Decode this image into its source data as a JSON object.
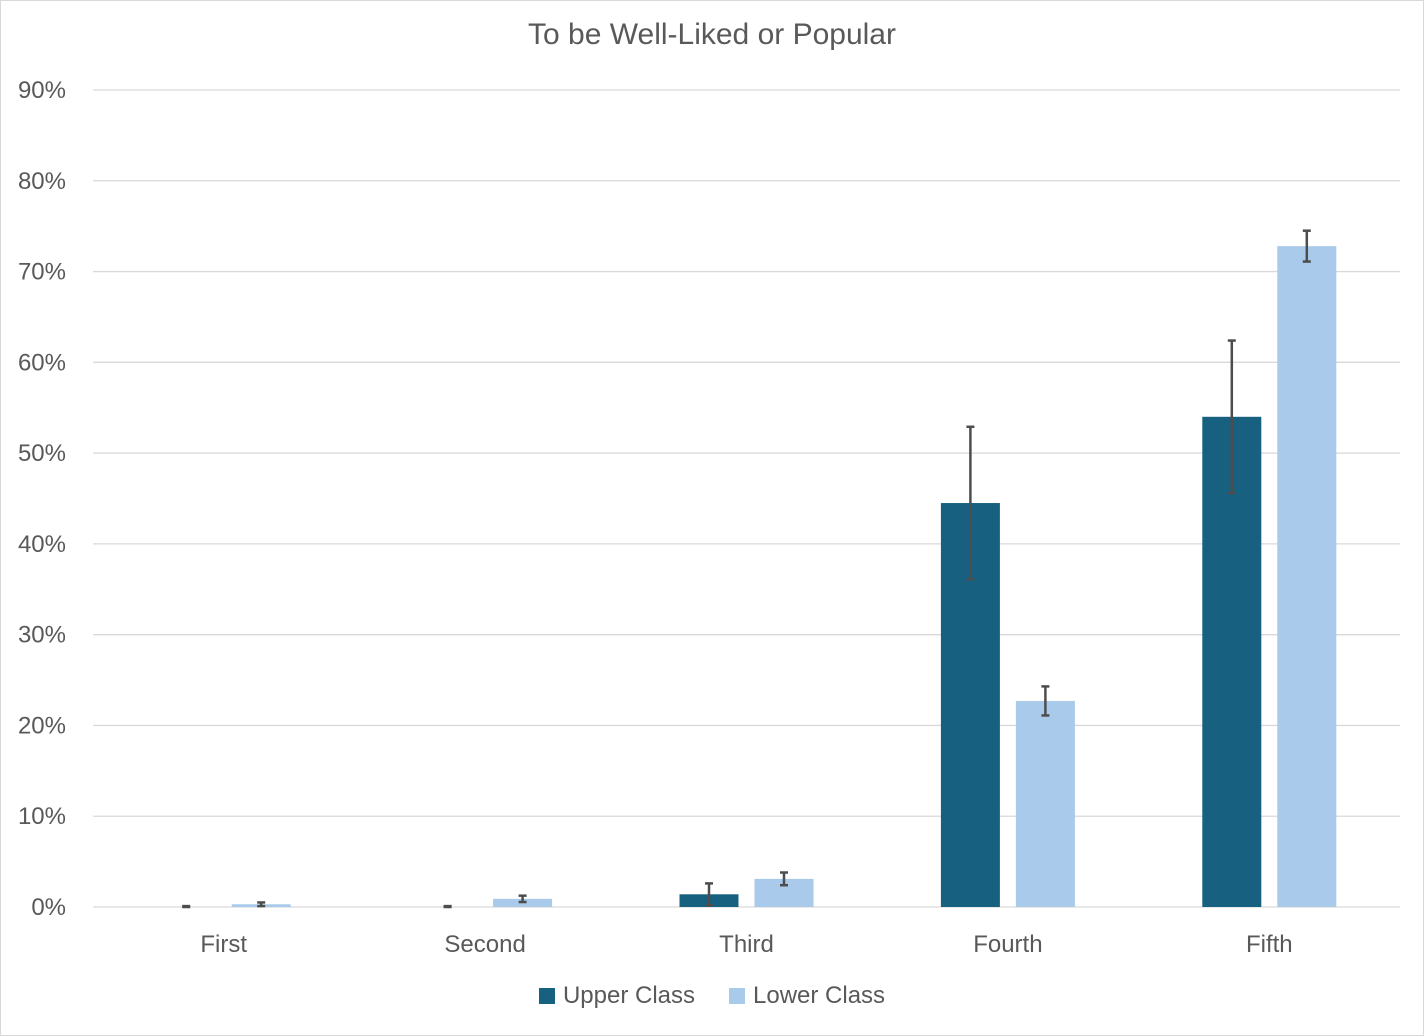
{
  "chart_data": {
    "type": "bar",
    "title": "To be Well-Liked or Popular",
    "xlabel": "",
    "ylabel": "",
    "categories": [
      "First",
      "Second",
      "Third",
      "Fourth",
      "Fifth"
    ],
    "yticks": [
      "0%",
      "10%",
      "20%",
      "30%",
      "40%",
      "50%",
      "60%",
      "70%",
      "80%",
      "90%"
    ],
    "ylim": [
      0,
      90
    ],
    "grid": true,
    "legend_position": "bottom",
    "series": [
      {
        "name": "Upper Class",
        "color": "#17607f",
        "values": [
          0,
          0,
          1.4,
          44.5,
          54.0
        ],
        "error": [
          0.1,
          0.1,
          1.2,
          8.4,
          8.4
        ]
      },
      {
        "name": "Lower Class",
        "color": "#a9caeb",
        "values": [
          0.3,
          0.9,
          3.1,
          22.7,
          72.8
        ],
        "error": [
          0.2,
          0.35,
          0.7,
          1.6,
          1.7
        ]
      }
    ],
    "error_bar_color": "#4d4d4d"
  }
}
